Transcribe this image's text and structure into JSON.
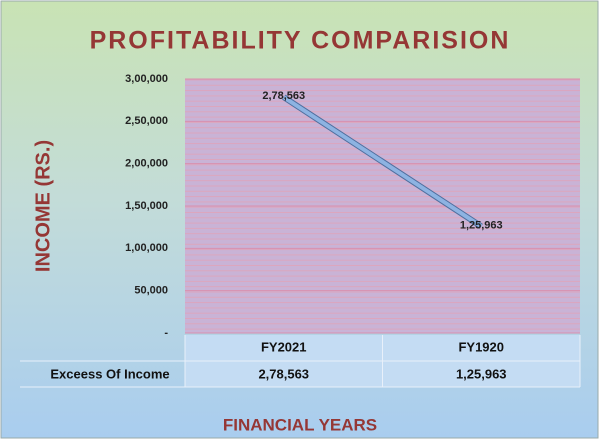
{
  "chart_data": {
    "type": "line",
    "title": "PROFITABILITY COMPARISION",
    "x_label": "FINANCIAL YEARS",
    "y_label": "INCOME (RS.)",
    "categories": [
      "FY2021",
      "FY1920"
    ],
    "series": [
      {
        "name": "Exceess Of Income",
        "color": "#8db3e2",
        "values": [
          278563,
          125963
        ],
        "value_labels": [
          "2,78,563",
          "1,25,963"
        ]
      }
    ],
    "ylim": [
      0,
      300000
    ],
    "yticks": [
      {
        "value": 0,
        "label": "-"
      },
      {
        "value": 50000,
        "label": "50,000"
      },
      {
        "value": 100000,
        "label": "1,00,000"
      },
      {
        "value": 150000,
        "label": "1,50,000"
      },
      {
        "value": 200000,
        "label": "2,00,000"
      },
      {
        "value": 250000,
        "label": "2,50,000"
      },
      {
        "value": 300000,
        "label": "3,00,000"
      }
    ]
  }
}
